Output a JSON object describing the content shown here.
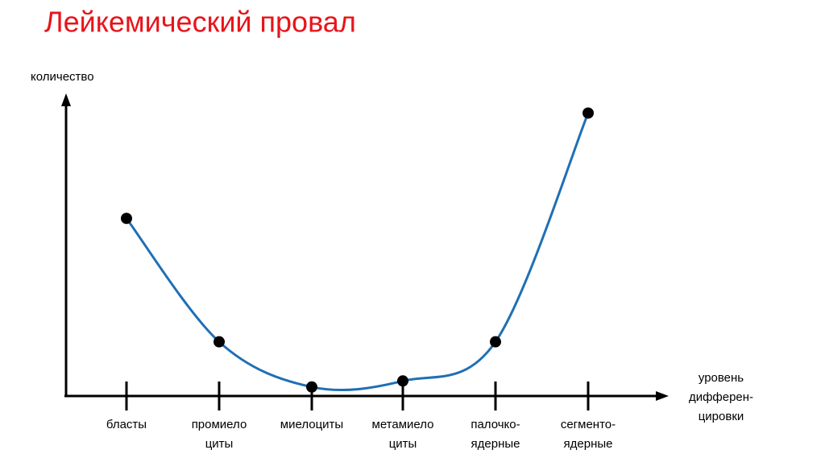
{
  "chart_data": {
    "type": "line",
    "title": "Лейкемический провал",
    "y_label": "количество",
    "x_label": [
      "уровень",
      "дифферен-",
      "цировки"
    ],
    "categories": [
      [
        "бласты"
      ],
      [
        "промиело",
        "циты"
      ],
      [
        "миелоциты"
      ],
      [
        "метамиело",
        "циты"
      ],
      [
        "палочко-",
        "ядерные"
      ],
      [
        "сегменто-",
        "ядерные"
      ]
    ],
    "values": [
      59,
      18,
      3,
      5,
      18,
      94
    ],
    "color": "#1f6fb5",
    "marker_color": "#000000",
    "ylim": [
      0,
      100
    ]
  }
}
